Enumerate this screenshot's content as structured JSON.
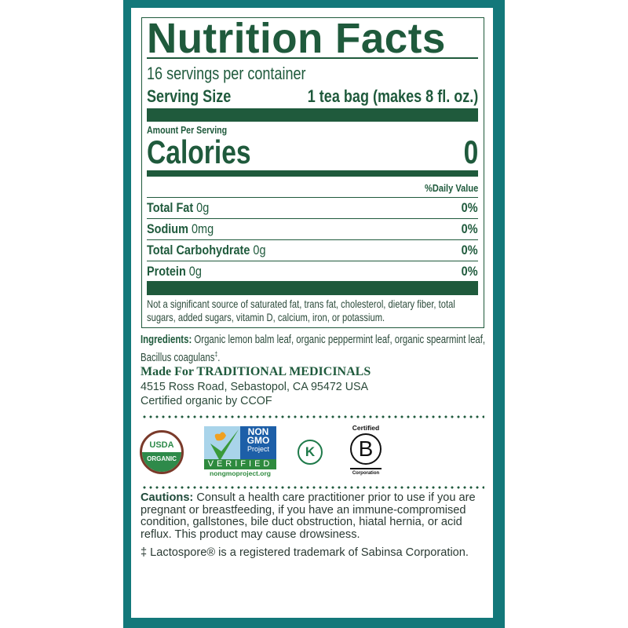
{
  "title": "Nutrition Facts",
  "servings_per_container": "16 servings per container",
  "serving_size": {
    "label": "Serving Size",
    "value": "1 tea bag (makes 8 fl. oz.)"
  },
  "amount_per_serving": "Amount Per Serving",
  "calories": {
    "label": "Calories",
    "value": "0"
  },
  "daily_value_header": "%Daily Value",
  "nutrients": [
    {
      "name": "Total Fat",
      "amount": "0g",
      "dv": "0%"
    },
    {
      "name": "Sodium",
      "amount": "0mg",
      "dv": "0%"
    },
    {
      "name": "Total Carbohydrate",
      "amount": "0g",
      "dv": "0%"
    },
    {
      "name": "Protein",
      "amount": "0g",
      "dv": "0%"
    }
  ],
  "footnote": [
    "Not a significant source of saturated fat, trans fat, cholesterol, dietary fiber, total",
    "sugars, added sugars, vitamin D, calcium, iron, or potassium."
  ],
  "ingredients": {
    "label": "Ingredients:",
    "lines": [
      "Organic lemon balm leaf, organic peppermint leaf, organic spearmint leaf,",
      "Bacillus coagulans"
    ],
    "mark": "‡",
    "end": "."
  },
  "maker": {
    "label": "Made For TRADITIONAL MEDICINALS",
    "address": "4515 Ross Road, Sebastopol, CA 95472 USA",
    "certified": "Certified organic by CCOF"
  },
  "logos": {
    "usda": {
      "top": "USDA",
      "bottom": "ORGANIC"
    },
    "nongmo": {
      "l1": "NON",
      "l2": "GMO",
      "l3": "Project",
      "verified": "VERIFIED",
      "url": "nongmoproject.org"
    },
    "kosher": "K",
    "bcorp": {
      "top": "Certified",
      "letter": "B",
      "bottom": "Corporation"
    }
  },
  "cautions": {
    "label": "Cautions:",
    "lines": [
      " Consult a health care practitioner prior to use if you are",
      "pregnant or breastfeeding, if you have an immune-compromised",
      "condition, gallstones, bile duct obstruction, hiatal hernia, or acid",
      "reflux. This product may cause drowsiness."
    ]
  },
  "trademark": "‡ Lactospore® is a registered trademark of Sabinsa Corporation.",
  "colors": {
    "teal": "#13787a",
    "green": "#1f5a3c"
  }
}
